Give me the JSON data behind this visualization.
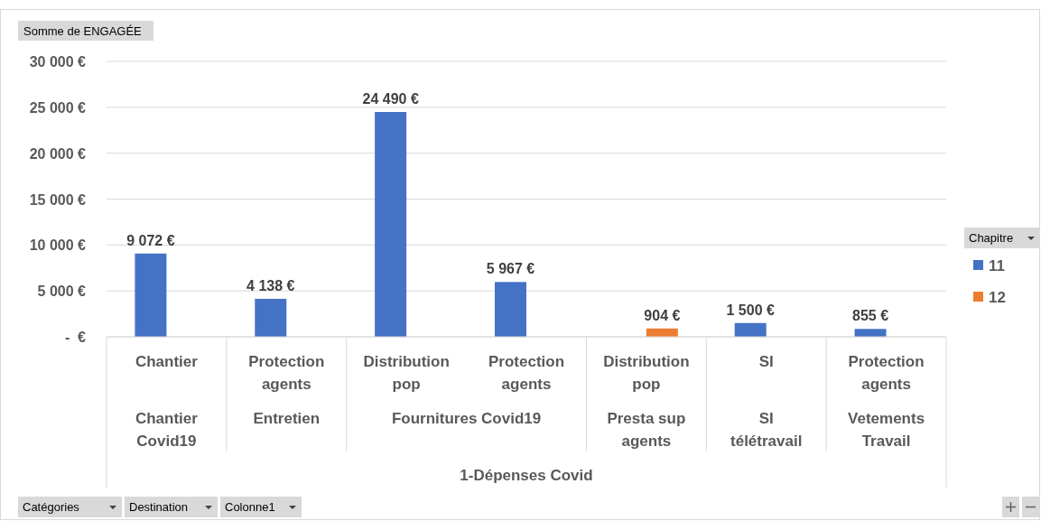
{
  "chart_data": {
    "type": "bar",
    "ylabel": "Somme de ENGAGÉE",
    "legend_title": "Chapitre",
    "legend": "right",
    "grid": "y",
    "categories": [
      "Chantier",
      "Protection agents",
      "Distribution pop",
      "Protection agents",
      "Distribution pop",
      "SI",
      "Protection agents"
    ],
    "series": [
      {
        "name": "11",
        "color": "#4472c4",
        "values": [
          9072,
          4138,
          24490,
          5967,
          null,
          1500,
          855
        ],
        "value_labels": [
          "9 072 €",
          "4 138 €",
          "24 490 €",
          "5 967 €",
          null,
          "1 500 €",
          "855 €"
        ]
      },
      {
        "name": "12",
        "color": "#ed7d31",
        "values": [
          null,
          null,
          null,
          null,
          904,
          null,
          null
        ],
        "value_labels": [
          null,
          null,
          null,
          null,
          "904 €",
          null,
          null
        ]
      }
    ],
    "ylim": [
      0,
      30000
    ],
    "yticks": [
      {
        "value": 0,
        "label": "-  €"
      },
      {
        "value": 5000,
        "label": "5 000 €"
      },
      {
        "value": 10000,
        "label": "10 000 €"
      },
      {
        "value": 15000,
        "label": "15 000 €"
      },
      {
        "value": 20000,
        "label": "20 000 €"
      },
      {
        "value": 25000,
        "label": "25 000 €"
      },
      {
        "value": 30000,
        "label": "30 000 €"
      }
    ],
    "annotations": [
      "Chantier Covid19",
      "Entretien",
      "Fournitures Covid19",
      "Presta sup agents",
      "SI télétravail",
      "Vetements Travail",
      "1-Dépenses Covid",
      "Catégories",
      "Destination",
      "Colonne1"
    ]
  }
}
